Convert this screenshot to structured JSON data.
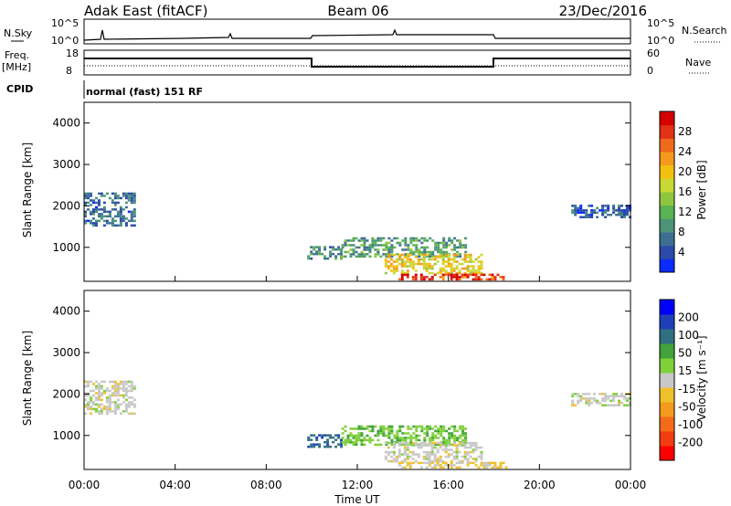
{
  "header": {
    "station": "Adak East (fitACF)",
    "beam": "Beam 06",
    "date": "23/Dec/2016"
  },
  "strip_panels": {
    "nsky": {
      "left_label": "N.Sky",
      "right_label": "N.Search",
      "left_ticks": [
        "10^5",
        "10^0"
      ],
      "right_ticks": [
        "10^5",
        "10^0"
      ]
    },
    "freq": {
      "left_label_1": "Freq.",
      "left_label_2": "[MHz]",
      "right_label": "Nave",
      "left_ticks": [
        "18",
        "8"
      ],
      "right_ticks": [
        "60",
        "0"
      ]
    },
    "cpid": {
      "left_label": "CPID",
      "program": "normal (fast) 151 RF"
    }
  },
  "colors": {
    "frame": "#000000",
    "power_scale": [
      "#0a2bff",
      "#2b4aa8",
      "#3e6f93",
      "#4c9478",
      "#58b352",
      "#8ec63f",
      "#c7d935",
      "#f2c10f",
      "#f59a1d",
      "#ef6a1b",
      "#e23216",
      "#d50000"
    ],
    "velocity_scale": [
      "#ff0000",
      "#f23c12",
      "#f66b18",
      "#f49a1f",
      "#f0c02a",
      "#c8c8c8",
      "#7fd13a",
      "#41a33a",
      "#2f6f82",
      "#1f3fb8",
      "#0000ff"
    ]
  },
  "chart_data": [
    {
      "type": "heatmap",
      "panel": "power",
      "ylabel": "Slant Range [km]",
      "xlabel": "",
      "ylim": [
        180,
        4500
      ],
      "xlim": [
        0,
        24
      ],
      "yticks": [
        "1000",
        "2000",
        "3000",
        "4000"
      ],
      "colorbar": {
        "label": "Power [dB]",
        "ticks": [
          "4",
          "8",
          "12",
          "16",
          "20",
          "24",
          "28"
        ],
        "range": [
          0,
          30
        ]
      },
      "grid": false,
      "regions": [
        {
          "t0": 0.0,
          "t1": 2.2,
          "r0": 1500,
          "r1": 2300,
          "value": 6
        },
        {
          "t0": 9.8,
          "t1": 11.3,
          "r0": 700,
          "r1": 1000,
          "value": 8
        },
        {
          "t0": 11.3,
          "t1": 16.8,
          "r0": 750,
          "r1": 1200,
          "value": 10
        },
        {
          "t0": 13.2,
          "t1": 17.4,
          "r0": 350,
          "r1": 800,
          "value": 18
        },
        {
          "t0": 13.8,
          "t1": 18.6,
          "r0": 200,
          "r1": 350,
          "value": 26
        },
        {
          "t0": 21.4,
          "t1": 24.0,
          "r0": 1700,
          "r1": 2000,
          "value": 5
        }
      ]
    },
    {
      "type": "heatmap",
      "panel": "velocity",
      "ylabel": "Slant Range [km]",
      "xlabel": "Time UT",
      "ylim": [
        180,
        4500
      ],
      "xlim": [
        0,
        24
      ],
      "yticks": [
        "1000",
        "2000",
        "3000",
        "4000"
      ],
      "xticks": [
        "00:00",
        "04:00",
        "08:00",
        "12:00",
        "16:00",
        "20:00",
        "00:00"
      ],
      "colorbar": {
        "label": "Velocity [m s⁻¹]",
        "ticks": [
          "-200",
          "-100",
          "-50",
          "-15",
          "15",
          "50",
          "100",
          "200"
        ],
        "range": [
          -250,
          250
        ]
      },
      "grid": false,
      "regions": [
        {
          "t0": 0.0,
          "t1": 2.2,
          "r0": 1500,
          "r1": 2300,
          "value": 0
        },
        {
          "t0": 9.8,
          "t1": 11.3,
          "r0": 700,
          "r1": 1000,
          "value": 150
        },
        {
          "t0": 11.3,
          "t1": 16.8,
          "r0": 750,
          "r1": 1200,
          "value": 60
        },
        {
          "t0": 13.2,
          "t1": 17.4,
          "r0": 350,
          "r1": 800,
          "value": 0
        },
        {
          "t0": 13.8,
          "t1": 18.6,
          "r0": 200,
          "r1": 350,
          "value": -30
        },
        {
          "t0": 21.4,
          "t1": 24.0,
          "r0": 1700,
          "r1": 2000,
          "value": 0
        }
      ]
    }
  ]
}
